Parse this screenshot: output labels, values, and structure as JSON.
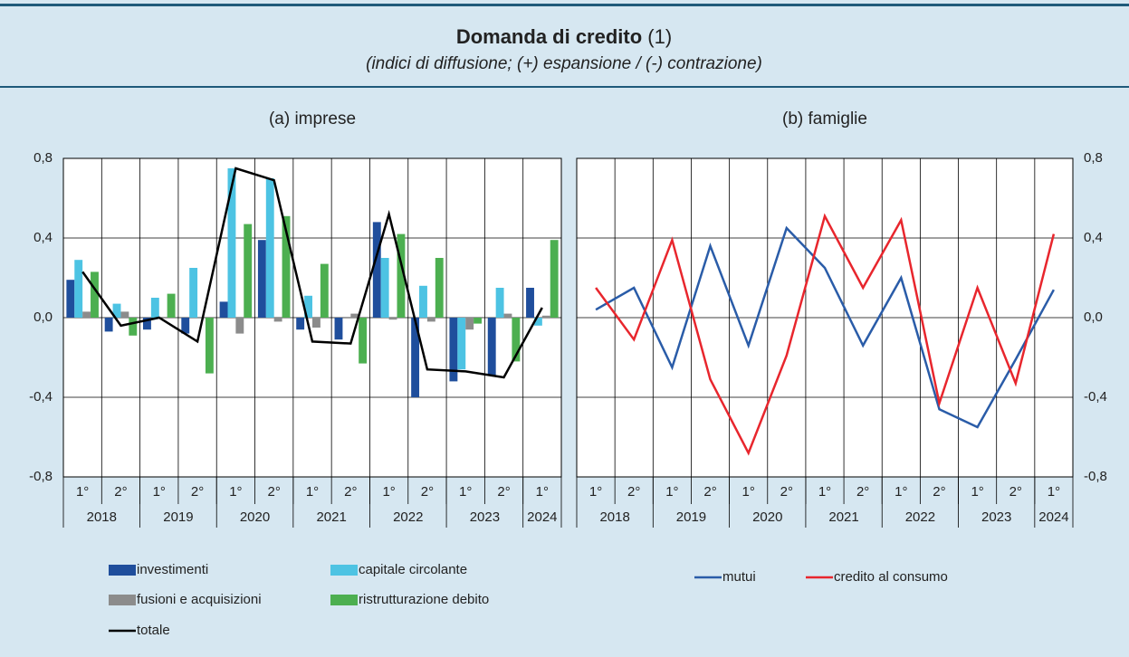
{
  "title": "Domanda di credito",
  "title_note": "(1)",
  "subtitle": "(indici di diffusione; (+) espansione / (-) contrazione)",
  "chart_data": [
    {
      "type": "bar",
      "title": "(a) imprese",
      "categories": [
        "1°",
        "2°",
        "1°",
        "2°",
        "1°",
        "2°",
        "1°",
        "2°",
        "1°",
        "2°",
        "1°",
        "2°",
        "1°"
      ],
      "years": [
        "2018",
        "2019",
        "2020",
        "2021",
        "2022",
        "2023",
        "2024"
      ],
      "ylim": [
        -0.8,
        0.8
      ],
      "yticks": [
        {
          "value": -0.8,
          "label": "-0,8"
        },
        {
          "value": -0.4,
          "label": "-0,4"
        },
        {
          "value": 0,
          "label": "0,0"
        },
        {
          "value": 0.4,
          "label": "0,4"
        },
        {
          "value": 0.8,
          "label": "0,8"
        }
      ],
      "grid": true,
      "yaxis": "left",
      "series": [
        {
          "name": "investimenti",
          "color": "#1f4e9c",
          "kind": "bar",
          "values": [
            0.19,
            -0.07,
            -0.06,
            -0.08,
            0.08,
            0.39,
            -0.06,
            -0.11,
            0.48,
            -0.4,
            -0.32,
            -0.29,
            0.15
          ]
        },
        {
          "name": "capitale circolante",
          "color": "#4dc3e3",
          "kind": "bar",
          "values": [
            0.29,
            0.07,
            0.1,
            0.25,
            0.75,
            0.7,
            0.11,
            0,
            0.3,
            0.16,
            -0.26,
            0.15,
            -0.04
          ]
        },
        {
          "name": "fusioni e acquisizioni",
          "color": "#8c8c8c",
          "kind": "bar",
          "values": [
            0.03,
            0.03,
            0,
            0,
            -0.08,
            -0.02,
            -0.05,
            0.02,
            -0.01,
            -0.02,
            -0.06,
            0.02,
            0.01
          ]
        },
        {
          "name": "ristrutturazione debito",
          "color": "#4caf50",
          "kind": "bar",
          "values": [
            0.23,
            -0.09,
            0.12,
            -0.28,
            0.47,
            0.51,
            0.27,
            -0.23,
            0.42,
            0.3,
            -0.03,
            -0.22,
            0.39
          ]
        },
        {
          "name": "totale",
          "color": "#000000",
          "kind": "line",
          "values": [
            0.23,
            -0.04,
            0,
            -0.12,
            0.75,
            0.69,
            -0.12,
            -0.13,
            0.52,
            -0.26,
            -0.27,
            -0.3,
            0.05
          ]
        }
      ]
    },
    {
      "type": "line",
      "title": "(b) famiglie",
      "categories": [
        "1°",
        "2°",
        "1°",
        "2°",
        "1°",
        "2°",
        "1°",
        "2°",
        "1°",
        "2°",
        "1°",
        "2°",
        "1°"
      ],
      "years": [
        "2018",
        "2019",
        "2020",
        "2021",
        "2022",
        "2023",
        "2024"
      ],
      "ylim": [
        -0.8,
        0.8
      ],
      "yticks": [
        {
          "value": -0.8,
          "label": "-0,8"
        },
        {
          "value": -0.4,
          "label": "-0,4"
        },
        {
          "value": 0,
          "label": "0,0"
        },
        {
          "value": 0.4,
          "label": "0,4"
        },
        {
          "value": 0.8,
          "label": "0,8"
        }
      ],
      "grid": true,
      "yaxis": "right",
      "series": [
        {
          "name": "mutui",
          "color": "#2a5ca8",
          "kind": "line",
          "values": [
            0.04,
            0.15,
            -0.25,
            0.36,
            -0.14,
            0.45,
            0.25,
            -0.14,
            0.2,
            -0.46,
            -0.55,
            -0.21,
            0.14
          ]
        },
        {
          "name": "credito al consumo",
          "color": "#e8262d",
          "kind": "line",
          "values": [
            0.15,
            -0.11,
            0.39,
            -0.31,
            -0.68,
            -0.19,
            0.51,
            0.15,
            0.49,
            -0.43,
            0.15,
            -0.33,
            0.42
          ]
        }
      ]
    }
  ]
}
